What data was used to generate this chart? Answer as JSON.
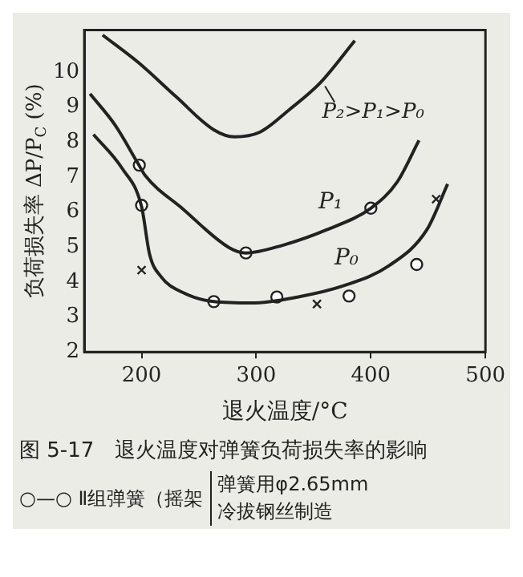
{
  "chart_data": {
    "type": "line",
    "title": "图 5-17　退火温度对弹簧负荷损失率的影响",
    "xlabel": "退火温度/°C",
    "ylabel": "负荷损失率 ΔP/P$_{C}$ (%)",
    "xlim": [
      150,
      500
    ],
    "xticks": [
      200,
      300,
      400,
      500
    ],
    "ylim": [
      2,
      11.2
    ],
    "yticks": [
      2,
      3,
      4,
      5,
      6,
      7,
      8,
      9,
      10
    ],
    "grid": false,
    "legend": false,
    "series": [
      {
        "type": "line",
        "color": "#222222",
        "marker": "none",
        "x": [
          166,
          197,
          230,
          263,
          281,
          303,
          329,
          356,
          386
        ],
        "values": [
          11.06,
          10.28,
          9.3,
          8.35,
          8.15,
          8.28,
          8.93,
          9.7,
          10.9
        ]
      },
      {
        "type": "line",
        "name": "P₁",
        "color": "#222222",
        "marker": "none",
        "x": [
          155,
          177,
          197,
          203,
          236,
          276,
          291,
          323,
          362,
          400,
          423,
          442
        ],
        "values": [
          9.38,
          8.48,
          7.38,
          7.05,
          6.09,
          4.99,
          4.83,
          5.05,
          5.5,
          6.11,
          6.86,
          8.05
        ]
      },
      {
        "type": "line",
        "name": "P₀",
        "color": "#222222",
        "marker": "none",
        "x": [
          158,
          183,
          200,
          207,
          217,
          236,
          263,
          296,
          336,
          376,
          416,
          449,
          467
        ],
        "values": [
          8.22,
          7.25,
          6.15,
          4.79,
          4.15,
          3.7,
          3.44,
          3.4,
          3.57,
          3.89,
          4.47,
          5.5,
          6.8
        ]
      },
      {
        "type": "scatter",
        "color": "#222222",
        "marker": "circle",
        "x": [
          198,
          291,
          400,
          200,
          263,
          318,
          381,
          440
        ],
        "values": [
          7.34,
          4.83,
          6.11,
          6.19,
          3.44,
          3.57,
          3.6,
          4.5
        ]
      },
      {
        "type": "scatter",
        "color": "#222222",
        "marker": "cross",
        "x": [
          200,
          353,
          457
        ],
        "values": [
          4.34,
          3.37,
          6.37
        ]
      }
    ],
    "annotations": [
      {
        "text": "P₂>P₁>P₀",
        "x": 360,
        "y": 9.6
      },
      "○—○ Ⅱ组弹簧（摇架",
      "弹簧用φ2.65mm",
      "冷拔钢丝制造"
    ]
  }
}
